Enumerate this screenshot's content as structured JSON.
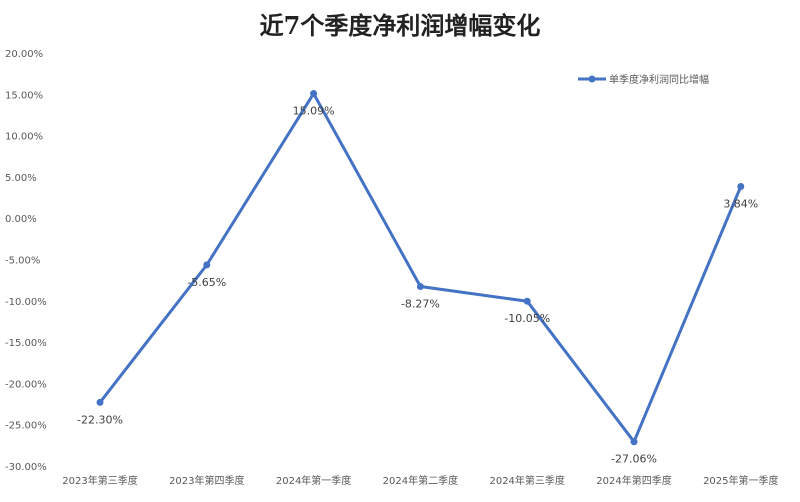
{
  "chart_data": {
    "type": "line",
    "title": "近7个季度净利润增幅变化",
    "categories": [
      "2023年第三季度",
      "2023年第四季度",
      "2024年第一季度",
      "2024年第二季度",
      "2024年第三季度",
      "2024年第四季度",
      "2025年第一季度"
    ],
    "series": [
      {
        "name": "单季度净利润同比增幅",
        "values": [
          -22.3,
          -5.65,
          15.09,
          -8.27,
          -10.05,
          -27.06,
          3.84
        ],
        "color": "#4472C4"
      }
    ],
    "data_labels": [
      "-22.30%",
      "-5.65%",
      "15.09%",
      "-8.27%",
      "-10.05%",
      "-27.06%",
      "3.84%"
    ],
    "y_ticks": [
      "20.00%",
      "15.00%",
      "10.00%",
      "5.00%",
      "0.00%",
      "-5.00%",
      "-10.00%",
      "-15.00%",
      "-20.00%",
      "-25.00%",
      "-30.00%"
    ],
    "ylim": [
      -30,
      20
    ],
    "xlabel": "",
    "ylabel": "",
    "grid": false,
    "legend": "top-right"
  }
}
